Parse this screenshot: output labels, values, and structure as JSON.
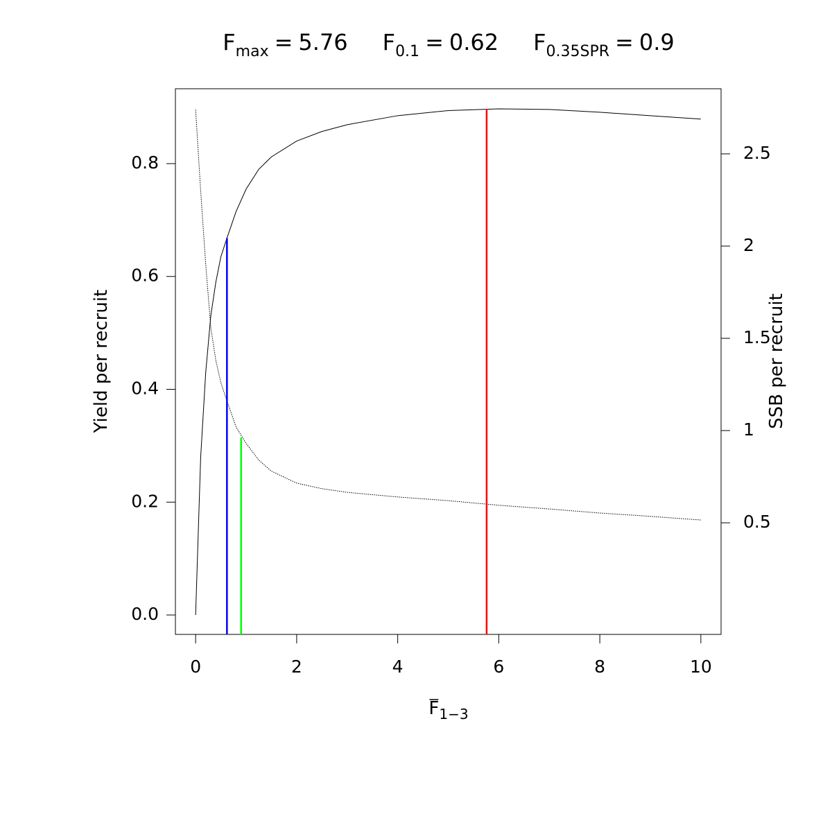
{
  "chart_data": {
    "type": "line",
    "reference_lines": [
      {
        "symbol": "F",
        "subscript": "max",
        "relation": "=",
        "value": 5.76,
        "color": "#ff0000",
        "top": 0.897,
        "axis": "y"
      },
      {
        "symbol": "F",
        "subscript": "0.1",
        "relation": "=",
        "value": 0.62,
        "color": "#0000ff",
        "top": 0.668,
        "axis": "y"
      },
      {
        "symbol": "F",
        "subscript": "0.35SPR",
        "relation": "=",
        "value": 0.9,
        "color": "#00ff00",
        "top": 0.962,
        "axis": "y2"
      }
    ],
    "xlabel": {
      "text": "F",
      "subscript": "1−3",
      "overline": true
    },
    "ylabel": "Yield per recruit",
    "y2label": "SSB per recruit",
    "x": [
      0,
      0.1,
      0.2,
      0.3,
      0.4,
      0.5,
      0.62,
      0.8,
      1,
      1.25,
      1.5,
      2,
      2.5,
      3,
      4,
      5,
      6,
      7,
      8,
      9,
      10
    ],
    "series": [
      {
        "color": "#000000",
        "dash": "solid",
        "axis": "y",
        "values": [
          0,
          0.28,
          0.43,
          0.53,
          0.59,
          0.635,
          0.668,
          0.715,
          0.755,
          0.79,
          0.812,
          0.84,
          0.857,
          0.869,
          0.885,
          0.894,
          0.897,
          0.896,
          0.891,
          0.885,
          0.879
        ]
      },
      {
        "color": "#000000",
        "dash": "dotted",
        "axis": "y2",
        "values": [
          2.74,
          2.3,
          1.9,
          1.56,
          1.38,
          1.26,
          1.16,
          1.02,
          0.93,
          0.84,
          0.78,
          0.715,
          0.685,
          0.665,
          0.64,
          0.62,
          0.595,
          0.575,
          0.553,
          0.535,
          0.515
        ]
      }
    ],
    "xlim": [
      -0.4,
      10.4
    ],
    "xticks": [
      0,
      2,
      4,
      6,
      8,
      10
    ],
    "ylim": [
      -0.0344,
      0.9327
    ],
    "yticks": [
      {
        "value": 0,
        "label": "0.0"
      },
      0.2,
      0.4,
      0.6,
      0.8
    ],
    "y2lim": [
      -0.105,
      2.853
    ],
    "y2ticks": [
      0.5,
      1,
      1.5,
      2,
      2.5
    ]
  }
}
